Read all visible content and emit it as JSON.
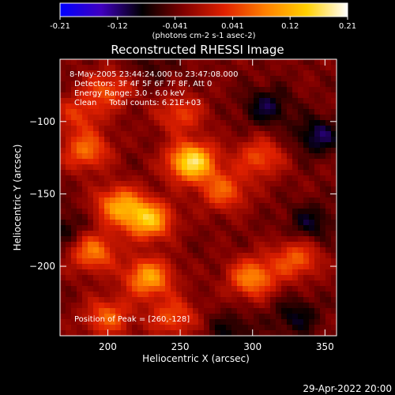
{
  "chart_data": {
    "type": "heatmap",
    "title": "Reconstructed RHESSI Image",
    "xlabel": "Heliocentric X (arcsec)",
    "ylabel": "Heliocentric Y (arcsec)",
    "xlim": [
      167,
      358
    ],
    "ylim": [
      -248,
      -57
    ],
    "x_ticks": [
      200,
      250,
      300,
      350
    ],
    "y_ticks": [
      -100,
      -150,
      -200
    ],
    "colorbar": {
      "min": -0.21,
      "max": 0.21,
      "tick_labels": [
        "-0.21",
        "-0.12",
        "-0.041",
        "0.041",
        "0.12",
        "0.21"
      ],
      "units_label": "(photons cm-2 s-1 asec-2)",
      "colormap": [
        "#0000ff",
        "#4000c0",
        "#000000",
        "#800000",
        "#e02000",
        "#ff8000",
        "#ffd000",
        "#ffffff"
      ]
    },
    "annotations": [
      "8-May-2005 23:44:24.000 to 23:47:08.000",
      "Detectors: 3F 4F 5F 6F 7F 8F, Att 0",
      "Energy Range: 3.0 - 6.0 keV",
      "Clean     Total counts: 6.21E+03"
    ],
    "peak_label": "Position of Peak = [260,-128]",
    "peak": [
      260,
      -128
    ],
    "bright_regions": [
      {
        "x": 258,
        "y": -128,
        "value": 0.21
      },
      {
        "x": 228,
        "y": -168,
        "value": 0.17
      },
      {
        "x": 208,
        "y": -158,
        "value": 0.14
      },
      {
        "x": 228,
        "y": -208,
        "value": 0.15
      },
      {
        "x": 185,
        "y": -120,
        "value": 0.11
      },
      {
        "x": 200,
        "y": -78,
        "value": 0.09
      },
      {
        "x": 250,
        "y": -95,
        "value": 0.08
      },
      {
        "x": 280,
        "y": -148,
        "value": 0.1
      },
      {
        "x": 305,
        "y": -125,
        "value": 0.09
      },
      {
        "x": 300,
        "y": -208,
        "value": 0.13
      },
      {
        "x": 330,
        "y": -195,
        "value": 0.1
      },
      {
        "x": 190,
        "y": -190,
        "value": 0.12
      },
      {
        "x": 200,
        "y": -235,
        "value": 0.1
      },
      {
        "x": 245,
        "y": -235,
        "value": 0.09
      },
      {
        "x": 180,
        "y": -95,
        "value": 0.07
      },
      {
        "x": 340,
        "y": -170,
        "value": -0.06
      },
      {
        "x": 345,
        "y": -110,
        "value": -0.08
      },
      {
        "x": 310,
        "y": -90,
        "value": -0.07
      },
      {
        "x": 330,
        "y": -235,
        "value": -0.06
      },
      {
        "x": 170,
        "y": -175,
        "value": -0.05
      },
      {
        "x": 285,
        "y": -245,
        "value": -0.05
      },
      {
        "x": 230,
        "y": -60,
        "value": -0.03
      }
    ]
  },
  "timestamp": "29-Apr-2022 20:00"
}
